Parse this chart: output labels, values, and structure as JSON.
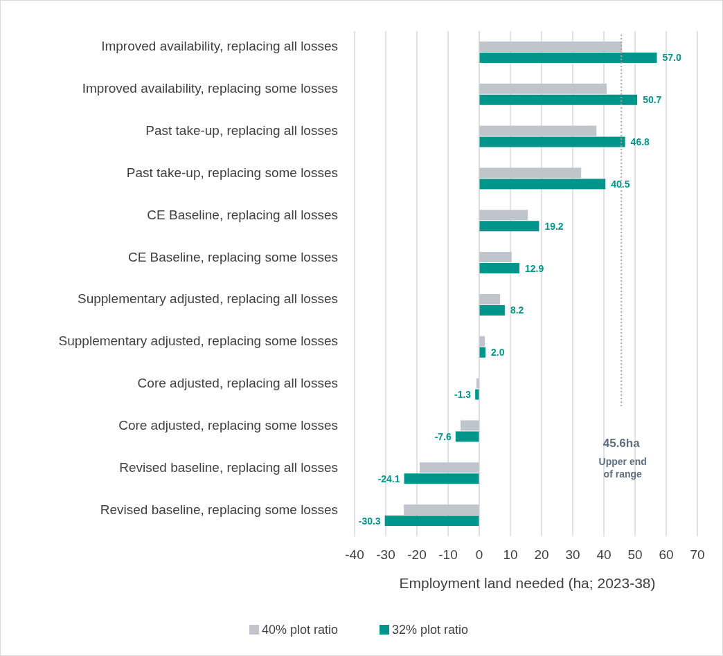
{
  "chart_data": {
    "type": "bar",
    "orientation": "horizontal",
    "xlabel": "Employment land needed (ha; 2023-38)",
    "categories": [
      "Improved availability, replacing all losses",
      "Improved availability, replacing some losses",
      "Past take-up, replacing all losses",
      "Past take-up, replacing some losses",
      "CE Baseline, replacing all losses",
      "CE Baseline, replacing some losses",
      "Supplementary adjusted, replacing all losses",
      "Supplementary adjusted, replacing some losses",
      "Core adjusted, replacing all losses",
      "Core adjusted, replacing some losses",
      "Revised baseline, replacing all losses",
      "Revised baseline, replacing some losses"
    ],
    "series": [
      {
        "name": "40% plot ratio",
        "color": "#bfc5cb",
        "values": [
          45.8,
          40.9,
          37.6,
          32.7,
          15.6,
          10.4,
          6.7,
          1.8,
          -0.9,
          -6.0,
          -19.1,
          -24.2
        ]
      },
      {
        "name": "32% plot ratio",
        "color": "#00958a",
        "values": [
          57.0,
          50.7,
          46.8,
          40.5,
          19.2,
          12.9,
          8.2,
          2.0,
          -1.3,
          -7.6,
          -24.1,
          -30.3
        ],
        "value_labels": [
          "57.0",
          "50.7",
          "46.8",
          "40.5",
          "19.2",
          "12.9",
          "8.2",
          "2.0",
          "-1.3",
          "-7.6",
          "-24.1",
          "-30.3"
        ]
      }
    ],
    "xlim": [
      -40,
      70
    ],
    "xticks": [
      -40,
      -30,
      -20,
      -10,
      0,
      10,
      20,
      30,
      40,
      50,
      60,
      70
    ],
    "grid": "x",
    "legend": "bottom",
    "ref_lines": [
      {
        "axis": "x",
        "value": 45.6,
        "label": "45.6ha",
        "color": "#a6a6a6",
        "line_style": "dotted"
      }
    ],
    "annotations": [
      "Upper end of range"
    ]
  }
}
